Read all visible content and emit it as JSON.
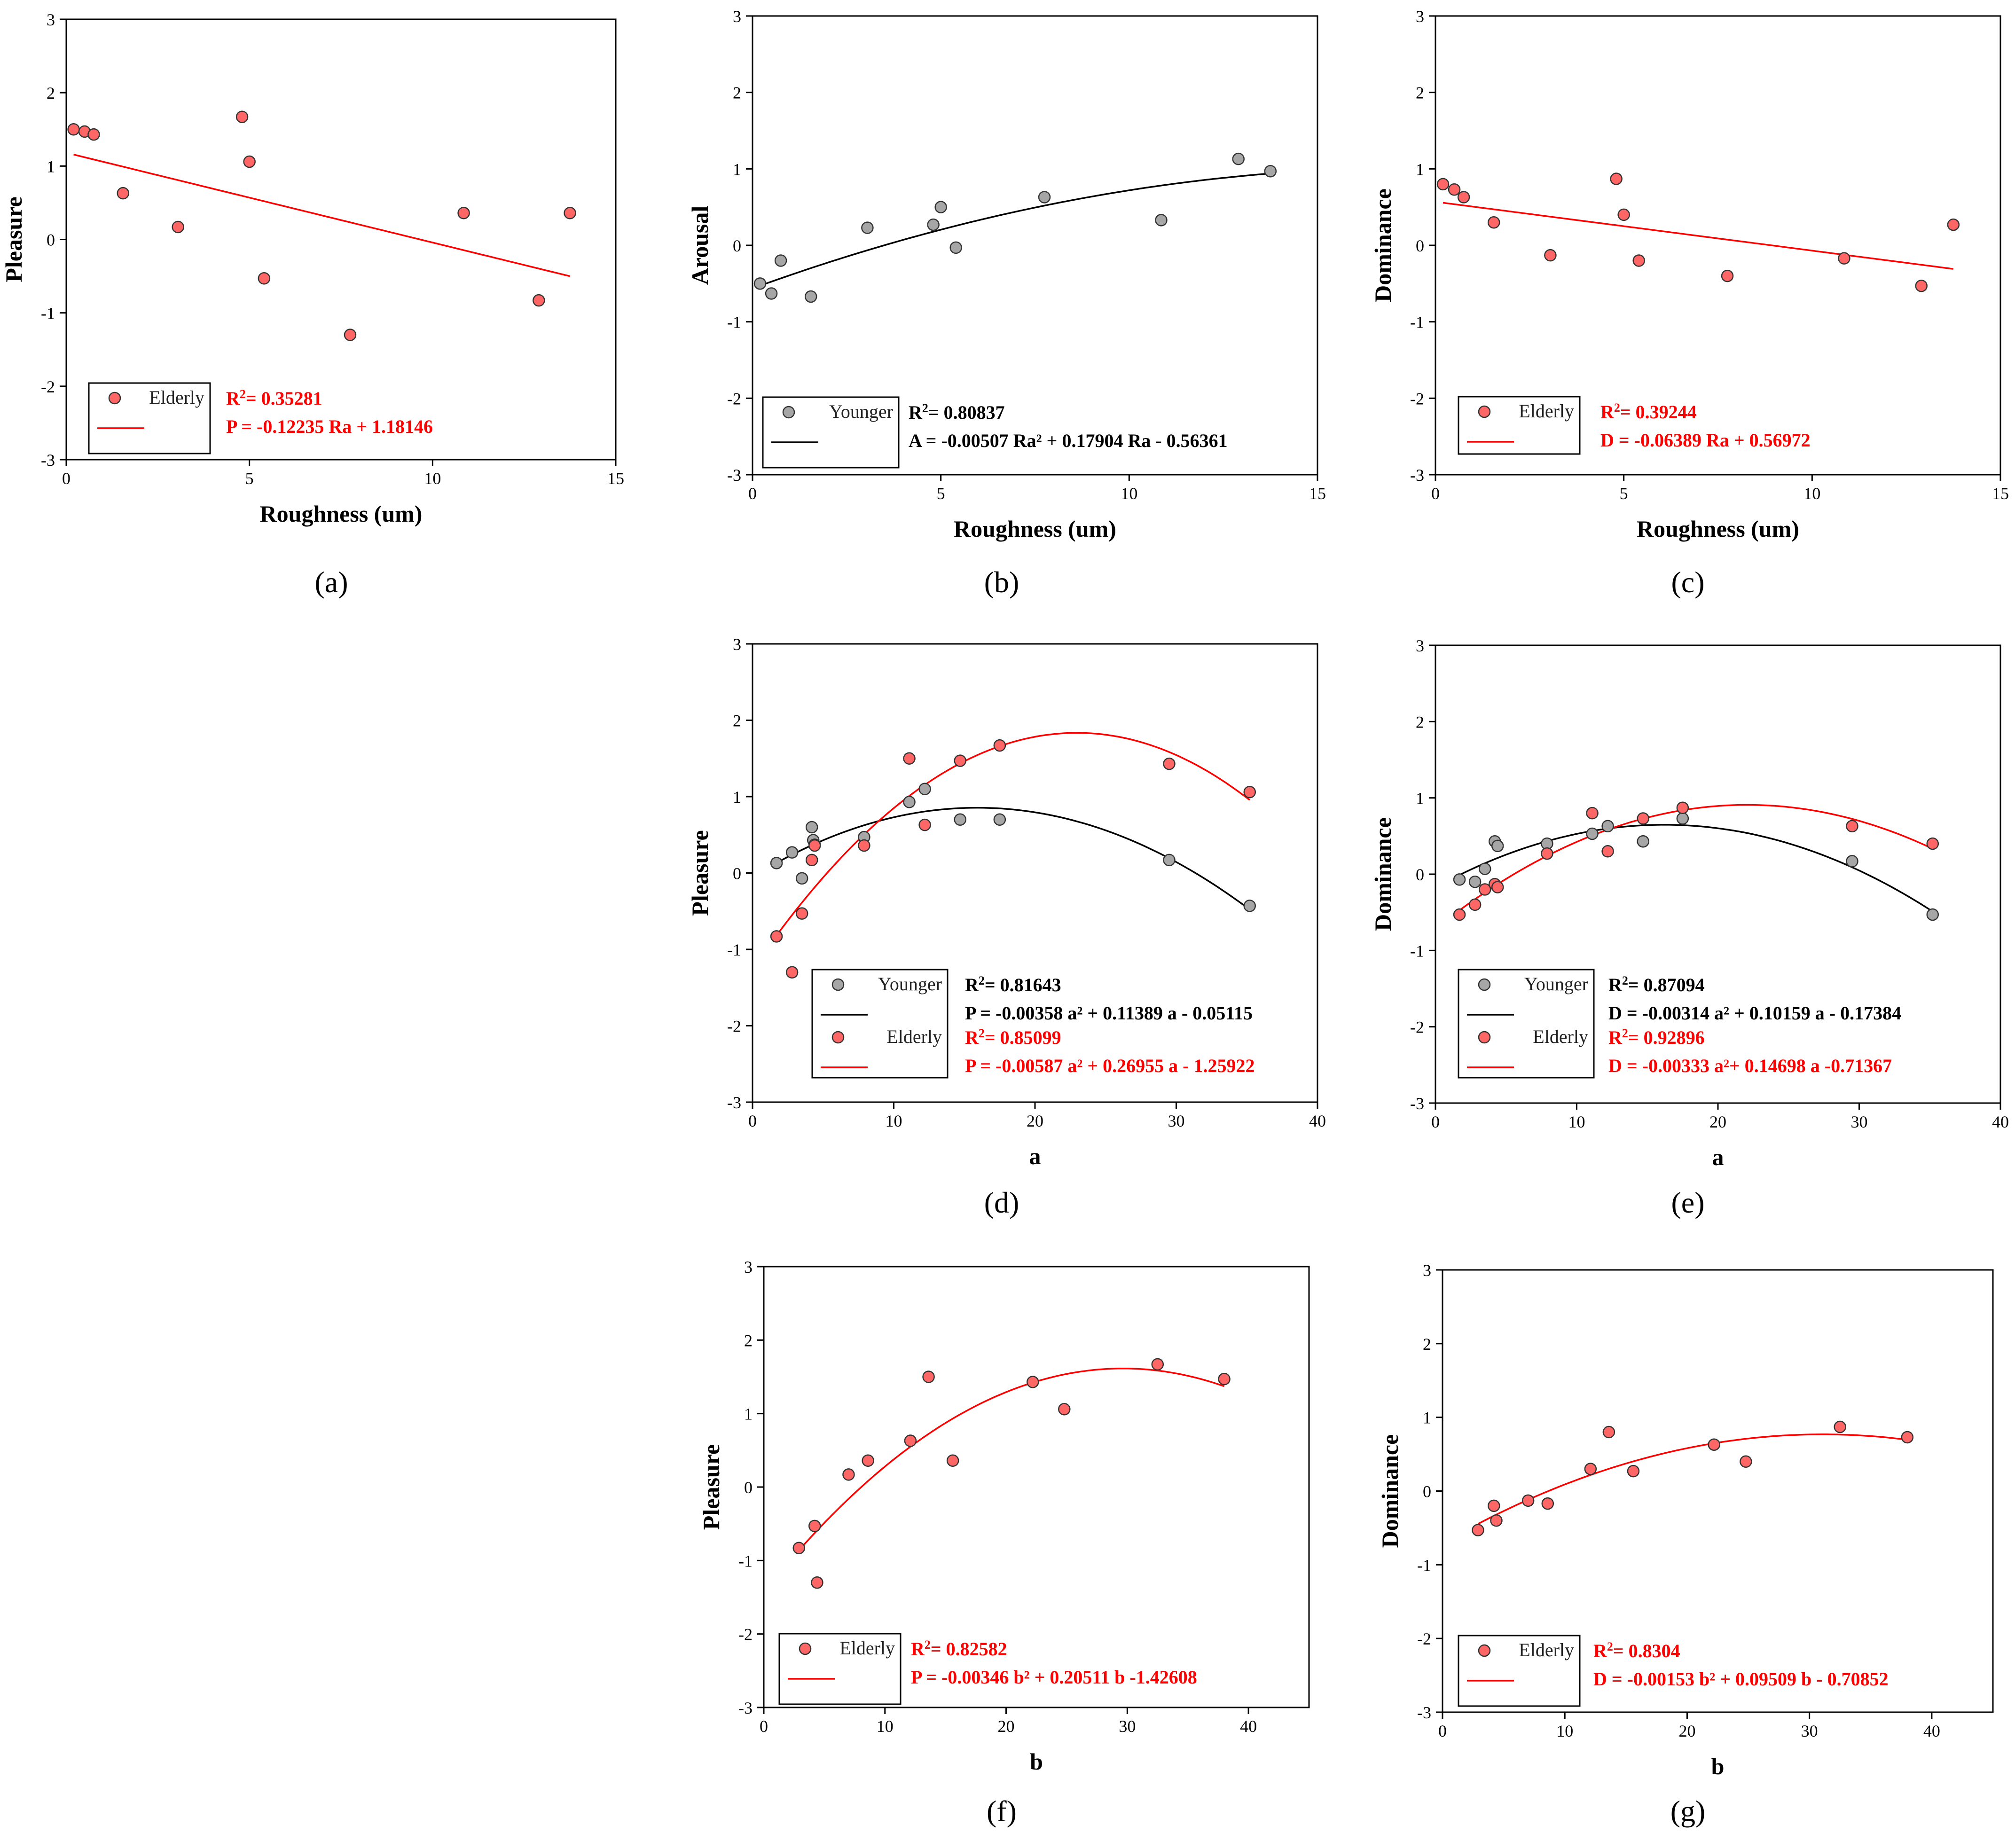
{
  "figure": {
    "panels": [
      "a",
      "b",
      "c",
      "d",
      "e",
      "f",
      "g"
    ]
  },
  "colors": {
    "elderly": "#ff0000",
    "elderly_marker": "#ff6666",
    "younger": "#000000",
    "younger_marker": "#a6a6a6",
    "axis": "#000000"
  },
  "chart_data": [
    {
      "id": "a",
      "type": "scatter",
      "caption": "(a)",
      "xlabel": "Roughness (um)",
      "ylabel": "Pleasure",
      "xlim": [
        0,
        15
      ],
      "ylim": [
        -3,
        3
      ],
      "xticks": [
        0,
        5,
        10,
        15
      ],
      "yticks": [
        -3,
        -2,
        -1,
        0,
        1,
        2,
        3
      ],
      "series": [
        {
          "name": "Elderly",
          "color": "red",
          "points": [
            [
              0.2,
              1.5
            ],
            [
              0.5,
              1.47
            ],
            [
              0.75,
              1.43
            ],
            [
              1.55,
              0.63
            ],
            [
              3.05,
              0.17
            ],
            [
              4.8,
              1.67
            ],
            [
              5.0,
              1.06
            ],
            [
              5.4,
              -0.53
            ],
            [
              7.75,
              -1.3
            ],
            [
              10.85,
              0.36
            ],
            [
              12.9,
              -0.83
            ],
            [
              13.75,
              0.36
            ]
          ],
          "fit": {
            "kind": "poly",
            "coef": [
              1.18146,
              -0.12235,
              0
            ],
            "x_range": [
              0.2,
              13.75
            ]
          },
          "r2_label": "R",
          "r2_value": "= 0.35281",
          "equation": "P = -0.12235 Ra + 1.18146"
        }
      ]
    },
    {
      "id": "b",
      "type": "scatter",
      "caption": "(b)",
      "xlabel": "Roughness (um)",
      "ylabel": "Arousal",
      "xlim": [
        0,
        15
      ],
      "ylim": [
        -3,
        3
      ],
      "xticks": [
        0,
        5,
        10,
        15
      ],
      "yticks": [
        -3,
        -2,
        -1,
        0,
        1,
        2,
        3
      ],
      "series": [
        {
          "name": "Younger",
          "color": "black",
          "points": [
            [
              0.2,
              -0.5
            ],
            [
              0.5,
              -0.63
            ],
            [
              0.75,
              -0.2
            ],
            [
              1.55,
              -0.67
            ],
            [
              3.05,
              0.23
            ],
            [
              4.8,
              0.27
            ],
            [
              5.0,
              0.5
            ],
            [
              5.4,
              -0.03
            ],
            [
              7.75,
              0.63
            ],
            [
              10.85,
              0.33
            ],
            [
              12.9,
              1.13
            ],
            [
              13.75,
              0.97
            ]
          ],
          "fit": {
            "kind": "poly",
            "coef": [
              -0.56361,
              0.17904,
              -0.00507
            ],
            "x_range": [
              0.2,
              13.75
            ]
          },
          "r2_label": "R",
          "r2_value": "= 0.80837",
          "equation": "A = -0.00507 Ra² + 0.17904 Ra - 0.56361"
        }
      ]
    },
    {
      "id": "c",
      "type": "scatter",
      "caption": "(c)",
      "xlabel": "Roughness (um)",
      "ylabel": "Dominance",
      "xlim": [
        0,
        15
      ],
      "ylim": [
        -3,
        3
      ],
      "xticks": [
        0,
        5,
        10,
        15
      ],
      "yticks": [
        -3,
        -2,
        -1,
        0,
        1,
        2,
        3
      ],
      "series": [
        {
          "name": "Elderly",
          "color": "red",
          "points": [
            [
              0.2,
              0.8
            ],
            [
              0.5,
              0.73
            ],
            [
              0.75,
              0.63
            ],
            [
              1.55,
              0.3
            ],
            [
              3.05,
              -0.13
            ],
            [
              4.8,
              0.87
            ],
            [
              5.0,
              0.4
            ],
            [
              5.4,
              -0.2
            ],
            [
              7.75,
              -0.4
            ],
            [
              10.85,
              -0.17
            ],
            [
              12.9,
              -0.53
            ],
            [
              13.75,
              0.27
            ]
          ],
          "fit": {
            "kind": "poly",
            "coef": [
              0.56972,
              -0.06389,
              0
            ],
            "x_range": [
              0.2,
              13.75
            ]
          },
          "r2_label": "R",
          "r2_value": "= 0.39244",
          "equation": "D = -0.06389 Ra + 0.56972"
        }
      ]
    },
    {
      "id": "d",
      "type": "scatter",
      "caption": "(d)",
      "xlabel": "a",
      "ylabel": "Pleasure",
      "xlim": [
        0,
        40
      ],
      "ylim": [
        -3,
        3
      ],
      "xticks": [
        0,
        10,
        20,
        30,
        40
      ],
      "yticks": [
        -3,
        -2,
        -1,
        0,
        1,
        2,
        3
      ],
      "series": [
        {
          "name": "Younger",
          "color": "black",
          "points": [
            [
              1.7,
              0.13
            ],
            [
              2.8,
              0.27
            ],
            [
              3.5,
              -0.07
            ],
            [
              4.2,
              0.6
            ],
            [
              4.3,
              0.43
            ],
            [
              4.4,
              0.37
            ],
            [
              7.9,
              0.47
            ],
            [
              11.1,
              0.93
            ],
            [
              12.2,
              1.1
            ],
            [
              14.7,
              0.7
            ],
            [
              17.5,
              0.7
            ],
            [
              29.5,
              0.17
            ],
            [
              35.2,
              -0.43
            ]
          ],
          "fit": {
            "kind": "poly",
            "coef": [
              -0.05115,
              0.11389,
              -0.00358
            ],
            "x_range": [
              1.7,
              35.2
            ]
          },
          "r2_label": "R",
          "r2_value": "= 0.81643",
          "equation": "P = -0.00358 a² + 0.11389 a - 0.05115"
        },
        {
          "name": "Elderly",
          "color": "red",
          "points": [
            [
              1.7,
              -0.83
            ],
            [
              2.8,
              -1.3
            ],
            [
              3.5,
              -0.53
            ],
            [
              4.2,
              0.17
            ],
            [
              4.4,
              0.36
            ],
            [
              7.9,
              0.36
            ],
            [
              11.1,
              1.5
            ],
            [
              12.2,
              0.63
            ],
            [
              14.7,
              1.47
            ],
            [
              17.5,
              1.67
            ],
            [
              29.5,
              1.43
            ],
            [
              35.2,
              1.06
            ]
          ],
          "fit": {
            "kind": "poly",
            "coef": [
              -1.25922,
              0.26955,
              -0.00587
            ],
            "x_range": [
              1.7,
              35.2
            ]
          },
          "r2_label": "R",
          "r2_value": "= 0.85099",
          "equation": "P = -0.00587 a² + 0.26955 a - 1.25922"
        }
      ]
    },
    {
      "id": "e",
      "type": "scatter",
      "caption": "(e)",
      "xlabel": "a",
      "ylabel": "Dominance",
      "xlim": [
        0,
        40
      ],
      "ylim": [
        -3,
        3
      ],
      "xticks": [
        0,
        10,
        20,
        30,
        40
      ],
      "yticks": [
        -3,
        -2,
        -1,
        0,
        1,
        2,
        3
      ],
      "series": [
        {
          "name": "Younger",
          "color": "black",
          "points": [
            [
              1.7,
              -0.07
            ],
            [
              2.8,
              -0.1
            ],
            [
              3.5,
              0.07
            ],
            [
              4.2,
              0.43
            ],
            [
              4.4,
              0.37
            ],
            [
              7.9,
              0.4
            ],
            [
              11.1,
              0.53
            ],
            [
              12.2,
              0.63
            ],
            [
              14.7,
              0.43
            ],
            [
              17.5,
              0.73
            ],
            [
              29.5,
              0.17
            ],
            [
              35.2,
              -0.53
            ]
          ],
          "fit": {
            "kind": "poly",
            "coef": [
              -0.17384,
              0.10159,
              -0.00314
            ],
            "x_range": [
              1.7,
              35.2
            ]
          },
          "r2_label": "R",
          "r2_value": "= 0.87094",
          "equation": "D = -0.00314 a² + 0.10159 a - 0.17384"
        },
        {
          "name": "Elderly",
          "color": "red",
          "points": [
            [
              1.7,
              -0.53
            ],
            [
              2.8,
              -0.4
            ],
            [
              3.5,
              -0.2
            ],
            [
              4.2,
              -0.13
            ],
            [
              4.4,
              -0.17
            ],
            [
              7.9,
              0.27
            ],
            [
              11.1,
              0.8
            ],
            [
              12.2,
              0.3
            ],
            [
              14.7,
              0.73
            ],
            [
              17.5,
              0.87
            ],
            [
              29.5,
              0.63
            ],
            [
              35.2,
              0.4
            ]
          ],
          "fit": {
            "kind": "poly",
            "coef": [
              -0.71367,
              0.14698,
              -0.00333
            ],
            "x_range": [
              1.7,
              35.2
            ]
          },
          "r2_label": "R",
          "r2_value": "= 0.92896",
          "equation": "D = -0.00333 a²+ 0.14698 a -0.71367"
        }
      ]
    },
    {
      "id": "f",
      "type": "scatter",
      "caption": "(f)",
      "xlabel": "b",
      "ylabel": "Pleasure",
      "xlim": [
        0,
        45
      ],
      "ylim": [
        -3,
        3
      ],
      "xticks": [
        0,
        10,
        20,
        30,
        40
      ],
      "yticks": [
        -3,
        -2,
        -1,
        0,
        1,
        2,
        3
      ],
      "series": [
        {
          "name": "Elderly",
          "color": "red",
          "points": [
            [
              2.9,
              -0.83
            ],
            [
              4.2,
              -0.53
            ],
            [
              4.4,
              -1.3
            ],
            [
              7.0,
              0.17
            ],
            [
              8.6,
              0.36
            ],
            [
              12.1,
              0.63
            ],
            [
              13.6,
              1.5
            ],
            [
              15.6,
              0.36
            ],
            [
              22.2,
              1.43
            ],
            [
              24.8,
              1.06
            ],
            [
              32.5,
              1.67
            ],
            [
              38.0,
              1.47
            ]
          ],
          "fit": {
            "kind": "poly",
            "coef": [
              -1.42608,
              0.20511,
              -0.00346
            ],
            "x_range": [
              2.9,
              38.0
            ]
          },
          "r2_label": "R",
          "r2_value": "= 0.82582",
          "equation": "P = -0.00346 b² + 0.20511 b -1.42608"
        }
      ]
    },
    {
      "id": "g",
      "type": "scatter",
      "caption": "(g)",
      "xlabel": "b",
      "ylabel": "Dominance",
      "xlim": [
        0,
        45
      ],
      "ylim": [
        -3,
        3
      ],
      "xticks": [
        0,
        10,
        20,
        30,
        40
      ],
      "yticks": [
        -3,
        -2,
        -1,
        0,
        1,
        2,
        3
      ],
      "series": [
        {
          "name": "Elderly",
          "color": "red",
          "points": [
            [
              2.9,
              -0.53
            ],
            [
              4.2,
              -0.2
            ],
            [
              4.4,
              -0.4
            ],
            [
              7.0,
              -0.13
            ],
            [
              8.6,
              -0.17
            ],
            [
              12.1,
              0.3
            ],
            [
              13.6,
              0.8
            ],
            [
              15.6,
              0.27
            ],
            [
              22.2,
              0.63
            ],
            [
              24.8,
              0.4
            ],
            [
              32.5,
              0.87
            ],
            [
              38.0,
              0.73
            ]
          ],
          "fit": {
            "kind": "poly",
            "coef": [
              -0.70852,
              0.09509,
              -0.00153
            ],
            "x_range": [
              2.9,
              38.0
            ]
          },
          "r2_label": "R",
          "r2_value": "= 0.8304",
          "equation": "D = -0.00153 b² + 0.09509 b - 0.70852"
        }
      ]
    }
  ]
}
